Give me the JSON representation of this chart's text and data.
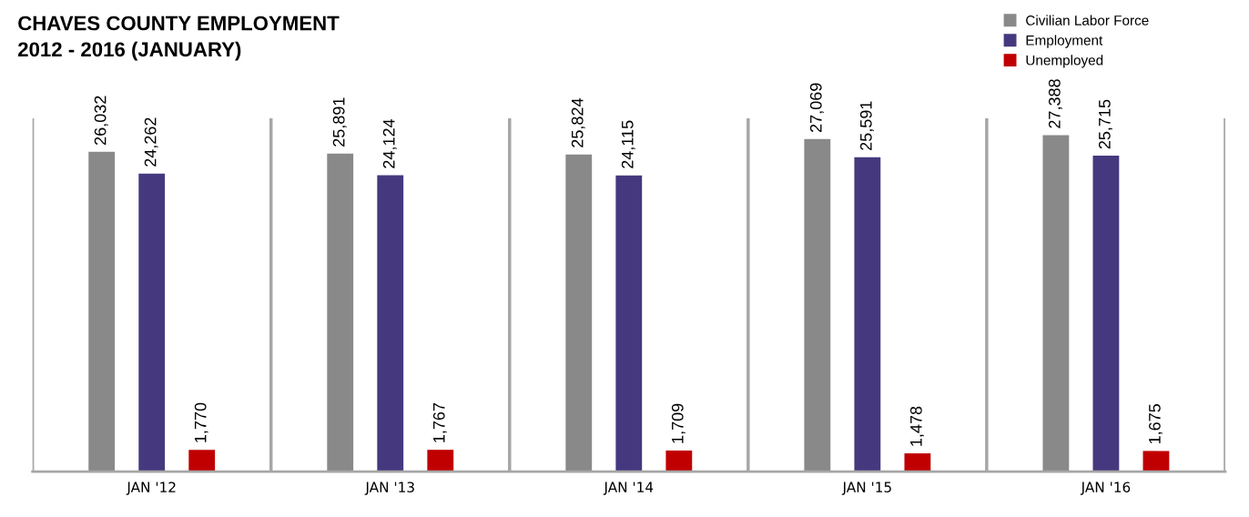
{
  "chart_data": {
    "type": "bar",
    "title": "CHAVES COUNTY EMPLOYMENT\n2012 - 2016 (JANUARY)",
    "categories": [
      "JAN '12",
      "JAN '13",
      "JAN '14",
      "JAN '15",
      "JAN '16"
    ],
    "series": [
      {
        "name": "Civilian Labor Force",
        "color": "#898989",
        "values": [
          26032,
          25891,
          25824,
          27069,
          27388
        ],
        "value_labels": [
          "26,032",
          "25,891",
          "25,824",
          "27,069",
          "27,388"
        ]
      },
      {
        "name": "Employment",
        "color": "#46387e",
        "values": [
          24262,
          24124,
          24115,
          25591,
          25715
        ],
        "value_labels": [
          "24,262",
          "24,124",
          "24,115",
          "25,591",
          "25,715"
        ]
      },
      {
        "name": "Unemployed",
        "color": "#c00000",
        "values": [
          1770,
          1767,
          1709,
          1478,
          1675
        ],
        "value_labels": [
          "1,770",
          "1,767",
          "1,709",
          "1,478",
          "1,675"
        ]
      }
    ],
    "tick_labels": "x",
    "grid": "x",
    "legend": "top right"
  }
}
